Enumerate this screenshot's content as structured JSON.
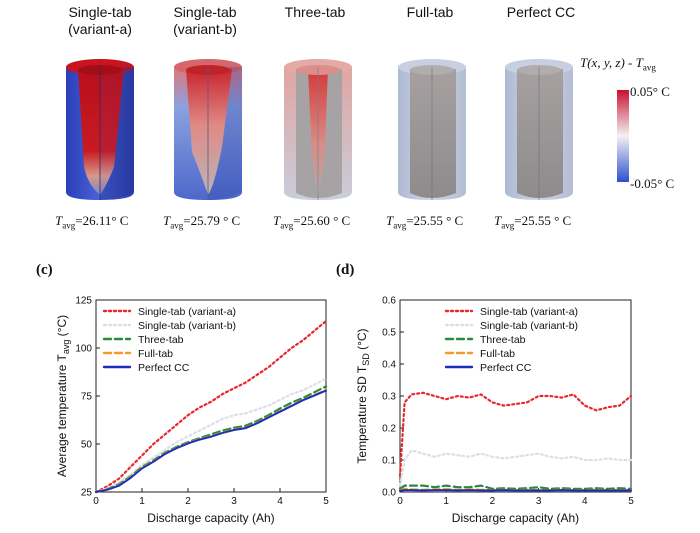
{
  "cells": [
    {
      "title_line1": "Single-tab",
      "title_line2": "(variant-a)",
      "tavg_value": "=26.11° C"
    },
    {
      "title_line1": "Single-tab",
      "title_line2": "(variant-b)",
      "tavg_value": "=25.79 ° C"
    },
    {
      "title_line1": "Three-tab",
      "title_line2": "",
      "tavg_value": "=25.60 ° C"
    },
    {
      "title_line1": "Full-tab",
      "title_line2": "",
      "tavg_value": "=25.55 ° C"
    },
    {
      "title_line1": "Perfect CC",
      "title_line2": "",
      "tavg_value": "=25.55 ° C"
    }
  ],
  "tavg_symbol": "T",
  "tavg_subscript": "avg",
  "colorbar": {
    "title": "T(x, y, z) - T",
    "title_subscript": "avg",
    "max_label": "0.05° C",
    "min_label": "-0.05° C",
    "color_high": "#c8102e",
    "color_mid": "#f2f2f2",
    "color_low": "#2f4fd0"
  },
  "panel_c_label": "(c)",
  "panel_d_label": "(d)",
  "chart_data": [
    {
      "type": "line",
      "xlabel": "Discharge capacity (Ah)",
      "ylabel": "Average temperature T",
      "ylabel_subscript": "avg",
      "ylabel_unit": " (°C)",
      "xlim": [
        0,
        5
      ],
      "ylim": [
        25,
        125
      ],
      "xticks": [
        0,
        1,
        2,
        3,
        4,
        5
      ],
      "yticks": [
        25,
        50,
        75,
        100,
        125
      ],
      "legend_position": "top-left",
      "x": [
        0,
        0.25,
        0.5,
        0.75,
        1,
        1.25,
        1.5,
        1.75,
        2,
        2.25,
        2.5,
        2.75,
        3,
        3.25,
        3.5,
        3.75,
        4,
        4.25,
        4.5,
        4.75,
        5
      ],
      "series": [
        {
          "name": "Single-tab (variant-a)",
          "color": "#e8282d",
          "style": "dotted",
          "values": [
            25,
            28,
            32,
            38,
            44,
            50,
            55,
            60,
            65,
            69,
            72,
            76,
            79,
            82,
            86,
            90,
            95,
            100,
            104,
            109,
            114
          ]
        },
        {
          "name": "Single-tab (variant-b)",
          "color": "#d8e0ea",
          "style": "dotted",
          "values": [
            25,
            27,
            30,
            34,
            39,
            43,
            47,
            51,
            54,
            57,
            60,
            63,
            65,
            66,
            68,
            70,
            73,
            76,
            78,
            81,
            84
          ]
        },
        {
          "name": "Three-tab",
          "color": "#2a8a3a",
          "style": "dashed",
          "values": [
            25,
            26.5,
            29,
            33,
            38,
            41.5,
            45.5,
            48.5,
            51,
            53,
            55,
            57,
            58.5,
            59.5,
            62,
            65,
            68.5,
            71.5,
            74,
            77,
            80
          ]
        },
        {
          "name": "Full-tab",
          "color": "#f29a2e",
          "style": "dashed",
          "values": [
            25,
            26.3,
            28.5,
            32.5,
            37.5,
            41,
            45,
            48,
            50.5,
            52.5,
            54,
            56,
            57.5,
            58.5,
            61,
            64,
            67,
            70,
            73,
            75.5,
            78
          ]
        },
        {
          "name": "Perfect CC",
          "color": "#1d2fb8",
          "style": "solid",
          "values": [
            25,
            26.2,
            28.3,
            32.3,
            37.3,
            40.8,
            44.8,
            47.8,
            50.3,
            52.3,
            53.8,
            55.8,
            57.3,
            58.3,
            60.8,
            63.8,
            66.8,
            69.8,
            72.8,
            75.3,
            77.8
          ]
        }
      ]
    },
    {
      "type": "line",
      "xlabel": "Discharge capacity (Ah)",
      "ylabel": "Temperature SD T",
      "ylabel_subscript": "SD",
      "ylabel_unit": " (°C)",
      "xlim": [
        0,
        5
      ],
      "ylim": [
        0,
        0.6
      ],
      "xticks": [
        0,
        1,
        2,
        3,
        4,
        5
      ],
      "yticks": [
        0.0,
        0.1,
        0.2,
        0.3,
        0.4,
        0.5,
        0.6
      ],
      "legend_position": "top-right",
      "x": [
        0,
        0.1,
        0.25,
        0.5,
        0.75,
        1,
        1.25,
        1.5,
        1.75,
        2,
        2.25,
        2.5,
        2.75,
        3,
        3.25,
        3.5,
        3.75,
        4,
        4.25,
        4.5,
        4.75,
        5
      ],
      "series": [
        {
          "name": "Single-tab (variant-a)",
          "color": "#e8282d",
          "style": "dotted",
          "values": [
            0.05,
            0.28,
            0.305,
            0.31,
            0.3,
            0.29,
            0.3,
            0.295,
            0.305,
            0.28,
            0.27,
            0.275,
            0.28,
            0.3,
            0.3,
            0.295,
            0.305,
            0.27,
            0.255,
            0.265,
            0.27,
            0.3
          ]
        },
        {
          "name": "Single-tab (variant-b)",
          "color": "#d8e0ea",
          "style": "dotted",
          "values": [
            0.02,
            0.1,
            0.13,
            0.12,
            0.11,
            0.12,
            0.115,
            0.11,
            0.12,
            0.11,
            0.105,
            0.11,
            0.115,
            0.12,
            0.11,
            0.105,
            0.11,
            0.1,
            0.1,
            0.105,
            0.1,
            0.1
          ]
        },
        {
          "name": "Three-tab",
          "color": "#2a8a3a",
          "style": "dashed",
          "values": [
            0.01,
            0.02,
            0.02,
            0.02,
            0.015,
            0.02,
            0.015,
            0.015,
            0.02,
            0.01,
            0.012,
            0.01,
            0.012,
            0.015,
            0.01,
            0.012,
            0.01,
            0.01,
            0.012,
            0.01,
            0.012,
            0.01
          ]
        },
        {
          "name": "Full-tab",
          "color": "#f29a2e",
          "style": "dashed",
          "values": [
            0.005,
            0.01,
            0.008,
            0.007,
            0.008,
            0.009,
            0.007,
            0.008,
            0.007,
            0.006,
            0.007,
            0.006,
            0.007,
            0.006,
            0.006,
            0.007,
            0.006,
            0.006,
            0.007,
            0.006,
            0.006,
            0.006
          ]
        },
        {
          "name": "Perfect CC",
          "color": "#1d2fb8",
          "style": "solid",
          "values": [
            0.004,
            0.006,
            0.006,
            0.005,
            0.006,
            0.006,
            0.005,
            0.006,
            0.005,
            0.005,
            0.006,
            0.005,
            0.005,
            0.005,
            0.005,
            0.006,
            0.005,
            0.005,
            0.005,
            0.005,
            0.005,
            0.005
          ]
        }
      ]
    }
  ]
}
